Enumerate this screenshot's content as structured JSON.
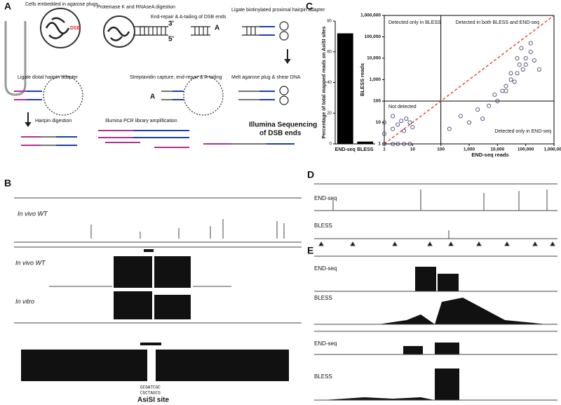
{
  "panels": {
    "a": "A",
    "b": "B",
    "c": "C",
    "d": "D",
    "e": "E"
  },
  "panel_a": {
    "steps": [
      "Cells embedded in agarose plugs",
      "Proteinase K and RNAseA digestion",
      "End-repair & A-tailing of DSB ends",
      "Ligate biotinylated proximal hairpin adapter",
      "Melt agarose plug & shear DNA",
      "Streptavidin capture, end-repair & A-tailing",
      "Ligate distal hairpin adapter",
      "Hairpin digestion",
      "Illumina PCR library amplification"
    ],
    "dsb": "DSB",
    "end3": "3'",
    "end5": "5'",
    "a_tail": "A",
    "a_tail2": "A",
    "result": [
      "Illumina Sequencing",
      "of DSB ends"
    ]
  },
  "panel_b": {
    "tracks": [
      "In vivo WT",
      "In vivo WT",
      "In vitro"
    ],
    "site": "AsiSI site",
    "seq_top": "GCGATCGC",
    "seq_bottom": "CGCTAGCG"
  },
  "panel_d": {
    "tracks": [
      "END-seq",
      "BLESS"
    ]
  },
  "panel_e": {
    "tracks": [
      "END-seq",
      "BLESS",
      "END-seq",
      "BLESS"
    ]
  },
  "chart_data": [
    {
      "type": "bar",
      "y_label": "Percentage of total mapped reads on AsiSI sites",
      "categories": [
        "END-seq",
        "BLESS"
      ],
      "values": [
        72,
        1.5
      ],
      "color": "#000000",
      "ylim": [
        0,
        80
      ],
      "yticks": [
        0,
        20,
        40,
        60,
        80
      ]
    },
    {
      "type": "scatter",
      "x_label": "END-seq reads",
      "y_label": "BLESS reads",
      "log_scale": true,
      "regions": [
        "Detected only in BLESS",
        "Detected in both BLESS and END-seq",
        "Not detected",
        "Detected only in END-seq"
      ],
      "x": [
        1,
        1,
        2,
        2,
        3,
        4,
        5,
        6,
        8,
        10,
        1,
        2,
        3,
        5,
        8,
        200,
        500,
        1000,
        2000,
        3000,
        5000,
        8000,
        10000,
        15000,
        20000,
        30000,
        40000,
        50000,
        60000,
        80000,
        100000,
        150000,
        200000,
        20000,
        30000,
        50000,
        70000,
        100000,
        150000,
        300000
      ],
      "values": [
        3,
        10,
        5,
        20,
        8,
        12,
        4,
        15,
        10,
        6,
        1,
        1,
        1,
        1,
        1,
        5,
        20,
        10,
        40,
        15,
        60,
        200,
        100,
        300,
        500,
        1000,
        800,
        2000,
        5000,
        3000,
        10000,
        20000,
        8000,
        300,
        2000,
        10000,
        30000,
        5000,
        50000,
        3000
      ],
      "color": "#333366",
      "threshold": 100,
      "xlim": [
        1,
        1000000
      ],
      "ylim": [
        1,
        1000000
      ],
      "xticks": [
        1,
        10,
        100,
        {
          "value": 1000,
          "label": "1,000"
        },
        {
          "value": 10000,
          "label": "10,000"
        },
        {
          "value": 100000,
          "label": "100,000"
        },
        {
          "value": 1000000,
          "label": "1,000,000"
        }
      ],
      "yticks": [
        1,
        10,
        100,
        {
          "value": 1000,
          "label": "1,000"
        },
        {
          "value": 10000,
          "label": "10,000"
        },
        {
          "value": 100000,
          "label": "100,000"
        },
        {
          "value": 1000000,
          "label": "1,000,000"
        }
      ]
    }
  ]
}
